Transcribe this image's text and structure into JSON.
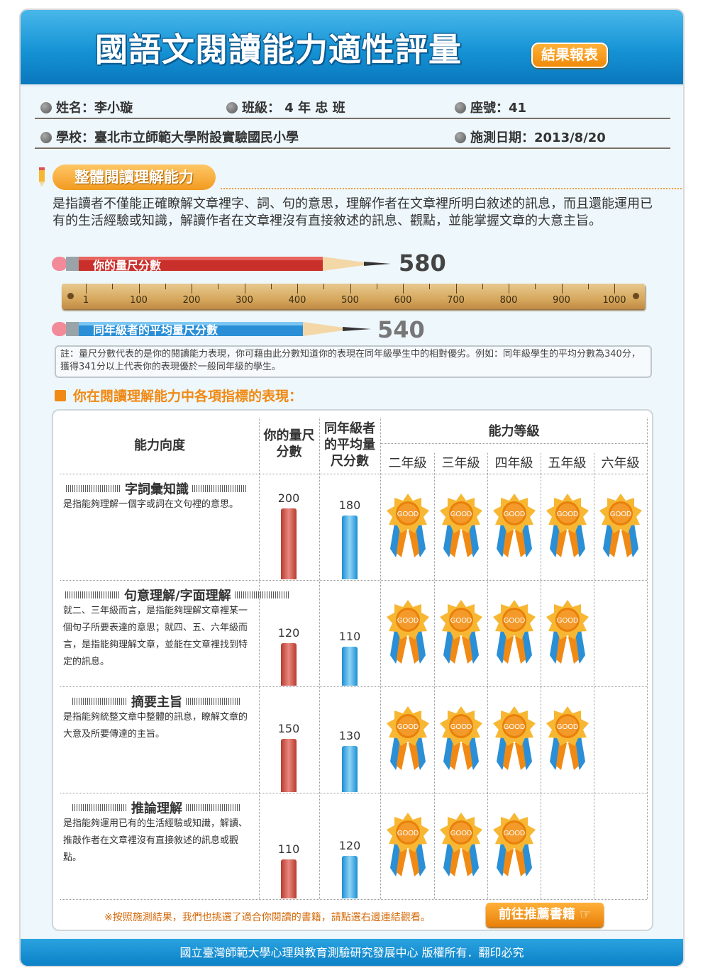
{
  "header": {
    "title": "國語文閱讀能力適性評量",
    "badge": "結果報表"
  },
  "info": {
    "name_label": "姓名：李小璇",
    "class_label": "班級： 4 年 忠 班",
    "seat_label": "座號：41",
    "school_label": "學校：臺北市立師範大學附設實驗國民小學",
    "date_label": "施測日期：2013/8/20"
  },
  "section": {
    "title": "整體閱讀理解能力",
    "description": "是指讀者不僅能正確瞭解文章裡字、詞、句的意思，理解作者在文章裡所明白敘述的訊息，而且還能運用已有的生活經驗或知識，解讀作者在文章裡沒有直接敘述的訊息、觀點，並能掌握文章的大意主旨。"
  },
  "scores": {
    "you_label": "你的量尺分數",
    "you_value": "580",
    "avg_label": "同年級者的平均量尺分數",
    "avg_value": "540",
    "ruler_ticks": [
      "1",
      "100",
      "200",
      "300",
      "400",
      "500",
      "600",
      "700",
      "800",
      "900",
      "1000"
    ]
  },
  "note": "註：量尺分數代表的是你的閱讀能力表現，你可藉由此分數知道你的表現在同年級學生中的相對優劣。例如：同年級學生的平均分數為340分，獲得341分以上代表你的表現優於一般同年級的學生。",
  "indicators": {
    "heading": "你在閱讀理解能力中各項指標的表現：",
    "col_dimension": "能力向度",
    "col_you": "你的量尺分數",
    "col_avg": "同年級者的平均量尺分數",
    "col_level": "能力等級",
    "grades": [
      "二年級",
      "三年級",
      "四年級",
      "五年級",
      "六年級"
    ],
    "medal_text": "GOOD",
    "rows": [
      {
        "title": "字詞彙知識",
        "desc": "是指能夠理解一個字或詞在文句裡的意思。",
        "you": "200",
        "avg": "180",
        "medals": 5
      },
      {
        "title": "句意理解/字面理解",
        "desc": "就二、三年級而言，是指能夠理解文章裡某一個句子所要表達的意思；就四、五、六年級而言，是指能夠理解文章，並能在文章裡找到特定的訊息。",
        "you": "120",
        "avg": "110",
        "medals": 4
      },
      {
        "title": "摘要主旨",
        "desc": "是指能夠統整文章中整體的訊息，瞭解文章的大意及所要傳達的主旨。",
        "you": "150",
        "avg": "130",
        "medals": 4
      },
      {
        "title": "推論理解",
        "desc": "是指能夠運用已有的生活經驗或知識，解讀、推敲作者在文章裡沒有直接敘述的訊息或觀點。",
        "you": "110",
        "avg": "120",
        "medals": 3
      }
    ]
  },
  "recommend": {
    "text": "※按照施測結果，我們也挑選了適合你閱讀的書籍，請點選右邊連結觀看。",
    "button": "前往推薦書籍"
  },
  "footer": "國立臺灣師範大學心理與教育測驗研究發展中心 版權所有．翻印必究"
}
